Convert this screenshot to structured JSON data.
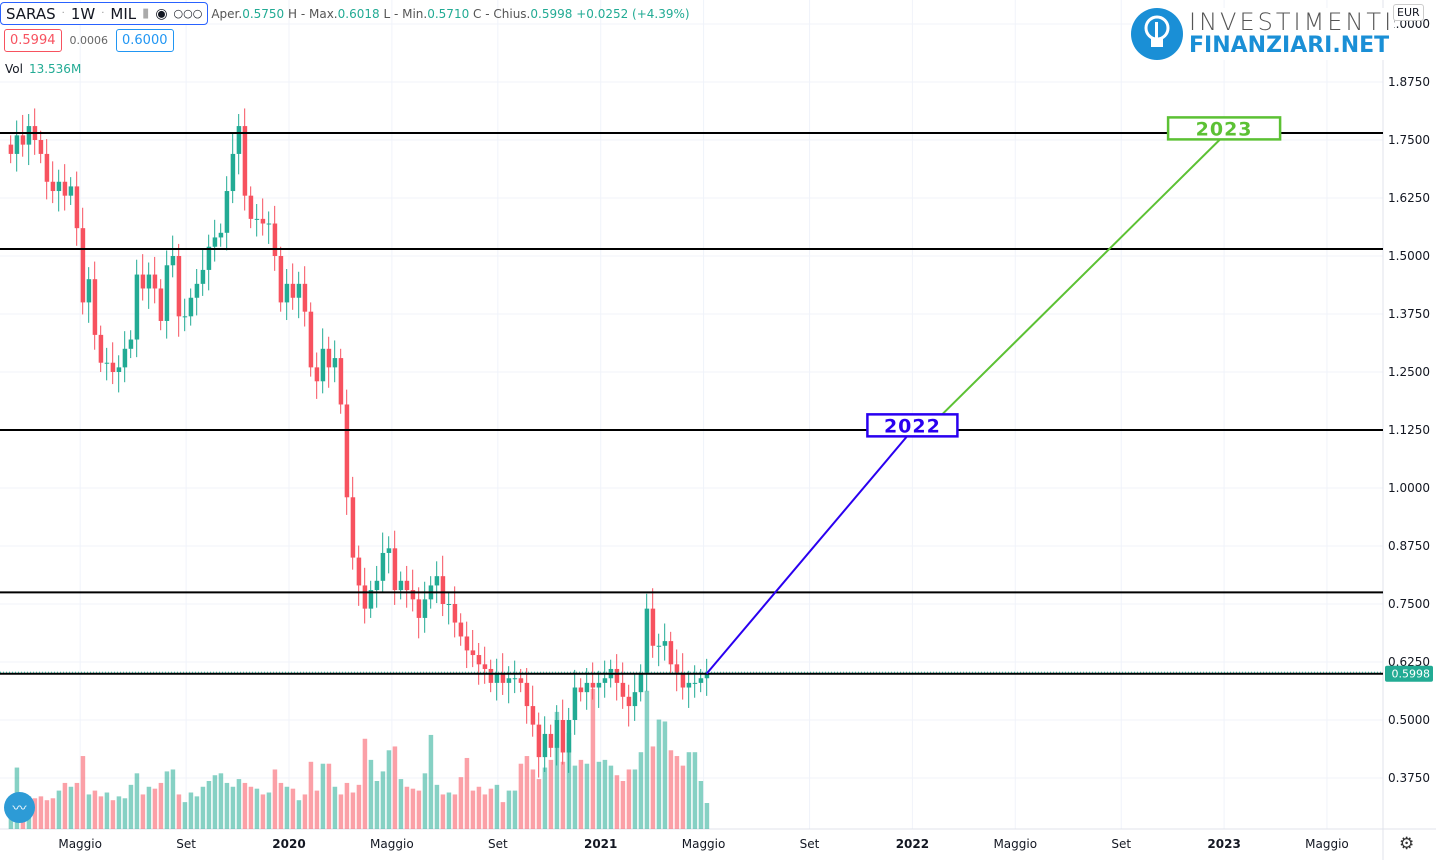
{
  "header": {
    "symbol": "SARAS",
    "interval": "1W",
    "exchange": "MIL",
    "open_label": "Aper.",
    "open": "0.5750",
    "high_label": "H - Max.",
    "high": "0.6018",
    "low_label": "L - Min.",
    "low": "0.5710",
    "close_label": "C - Chius.",
    "close": "0.5998",
    "change": "+0.0252 (+4.39%)",
    "bid": "0.5994",
    "spread": "0.0006",
    "ask": "0.6000",
    "vol_label": "Vol",
    "vol": "13.536M",
    "icons": [
      "flag-icon",
      "eye-icon",
      "more-icon"
    ]
  },
  "logo": {
    "line1": "INVESTIMENTI",
    "line2": "FINANZIARI.NET"
  },
  "currency": "EUR",
  "colors": {
    "up": "#22ab94",
    "down": "#f7525f",
    "line2022": "#2a00f0",
    "line2023": "#5cc134",
    "last_price": "#22ab94"
  },
  "chart_data": {
    "type": "candlestick",
    "y_ticks": [
      "2.0000",
      "1.8750",
      "1.7500",
      "1.6250",
      "1.5000",
      "1.3750",
      "1.2500",
      "1.1250",
      "1.0000",
      "0.8750",
      "0.7500",
      "0.6250",
      "0.5000",
      "0.3750"
    ],
    "ylim": [
      0.33,
      2.03
    ],
    "x_ticks": [
      {
        "label": "Maggio",
        "t": 2019.33
      },
      {
        "label": "Set",
        "t": 2019.67
      },
      {
        "label": "2020",
        "t": 2020.0
      },
      {
        "label": "Maggio",
        "t": 2020.33
      },
      {
        "label": "Set",
        "t": 2020.67
      },
      {
        "label": "2021",
        "t": 2021.0
      },
      {
        "label": "Maggio",
        "t": 2021.33
      },
      {
        "label": "Set",
        "t": 2021.67
      },
      {
        "label": "2022",
        "t": 2022.0
      },
      {
        "label": "Maggio",
        "t": 2022.33
      },
      {
        "label": "Set",
        "t": 2022.67
      },
      {
        "label": "2023",
        "t": 2023.0
      },
      {
        "label": "Maggio",
        "t": 2023.33
      }
    ],
    "last_candle_t": 2021.34,
    "closes": [
      1.72,
      1.76,
      1.74,
      1.78,
      1.75,
      1.72,
      1.66,
      1.64,
      1.66,
      1.63,
      1.65,
      1.56,
      1.4,
      1.45,
      1.33,
      1.27,
      1.27,
      1.25,
      1.26,
      1.3,
      1.32,
      1.46,
      1.43,
      1.46,
      1.43,
      1.36,
      1.48,
      1.5,
      1.37,
      1.37,
      1.41,
      1.44,
      1.47,
      1.52,
      1.54,
      1.55,
      1.64,
      1.72,
      1.78,
      1.63,
      1.58,
      1.58,
      1.57,
      1.57,
      1.5,
      1.4,
      1.44,
      1.41,
      1.44,
      1.38,
      1.26,
      1.23,
      1.3,
      1.26,
      1.28,
      1.18,
      0.98,
      0.85,
      0.79,
      0.74,
      0.78,
      0.8,
      0.86,
      0.87,
      0.78,
      0.8,
      0.78,
      0.76,
      0.72,
      0.76,
      0.79,
      0.81,
      0.75,
      0.75,
      0.71,
      0.68,
      0.65,
      0.64,
      0.62,
      0.61,
      0.58,
      0.6,
      0.58,
      0.59,
      0.59,
      0.58,
      0.53,
      0.49,
      0.42,
      0.47,
      0.44,
      0.5,
      0.43,
      0.5,
      0.57,
      0.56,
      0.58,
      0.57,
      0.58,
      0.59,
      0.61,
      0.58,
      0.55,
      0.53,
      0.56,
      0.6,
      0.74,
      0.66,
      0.66,
      0.67,
      0.62,
      0.6,
      0.57,
      0.58,
      0.58,
      0.59,
      0.5998
    ],
    "volumes_m": [
      17,
      32,
      18,
      17,
      16,
      17,
      15,
      16,
      20,
      24,
      22,
      24,
      38,
      18,
      20,
      17,
      19,
      15,
      17,
      16,
      23,
      29,
      18,
      22,
      21,
      24,
      30,
      31,
      18,
      14,
      19,
      17,
      22,
      25,
      28,
      29,
      24,
      22,
      26,
      24,
      22,
      21,
      18,
      19,
      31,
      24,
      22,
      21,
      15,
      18,
      35,
      20,
      34,
      34,
      22,
      18,
      24,
      19,
      23,
      47,
      36,
      25,
      30,
      41,
      43,
      26,
      22,
      21,
      20,
      29,
      49,
      23,
      18,
      19,
      18,
      27,
      37,
      20,
      22,
      18,
      21,
      23,
      14,
      20,
      20,
      34,
      38,
      31,
      26,
      32,
      36,
      61,
      35,
      50,
      33,
      36,
      34,
      73,
      35,
      36,
      33,
      28,
      25,
      31,
      31,
      40,
      72,
      43,
      57,
      56,
      41,
      38,
      33,
      40,
      40,
      25,
      13.536
    ],
    "levels": [
      1.765,
      1.515,
      1.125,
      0.775
    ],
    "last_price": "0.5998",
    "annotations": [
      {
        "label": "2022",
        "t": 2022.0,
        "price": 1.135,
        "color": "#2a00f0"
      },
      {
        "label": "2023",
        "t": 2023.0,
        "price": 1.775,
        "color": "#5cc134"
      }
    ],
    "trend_lines": [
      {
        "from": [
          2021.34,
          0.6
        ],
        "to": [
          2022.0,
          1.125
        ],
        "color": "#2a00f0"
      },
      {
        "from": [
          2022.09,
          1.155
        ],
        "to": [
          2023.0,
          1.76
        ],
        "color": "#5cc134"
      }
    ]
  }
}
